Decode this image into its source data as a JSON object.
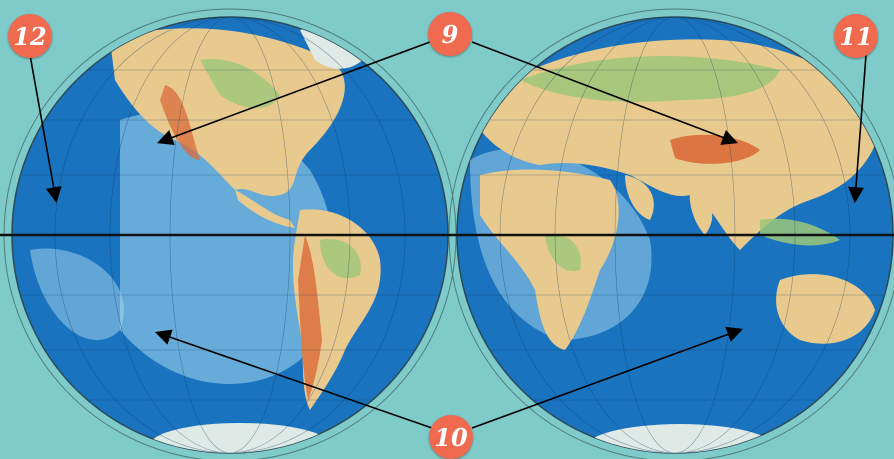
{
  "markers": {
    "m12": "12",
    "m9": "9",
    "m11": "11",
    "m10": "10"
  },
  "colors": {
    "background": "#7ecbc9",
    "ocean": "#1a73bf",
    "shallow": "#a7d9ee",
    "lowland": "#e8c98e",
    "mountain": "#d96b3a",
    "ice": "#dfe9e6",
    "marker": "#ef6a4e",
    "equator": "#111111"
  },
  "icons": [
    "arrow-icon"
  ]
}
